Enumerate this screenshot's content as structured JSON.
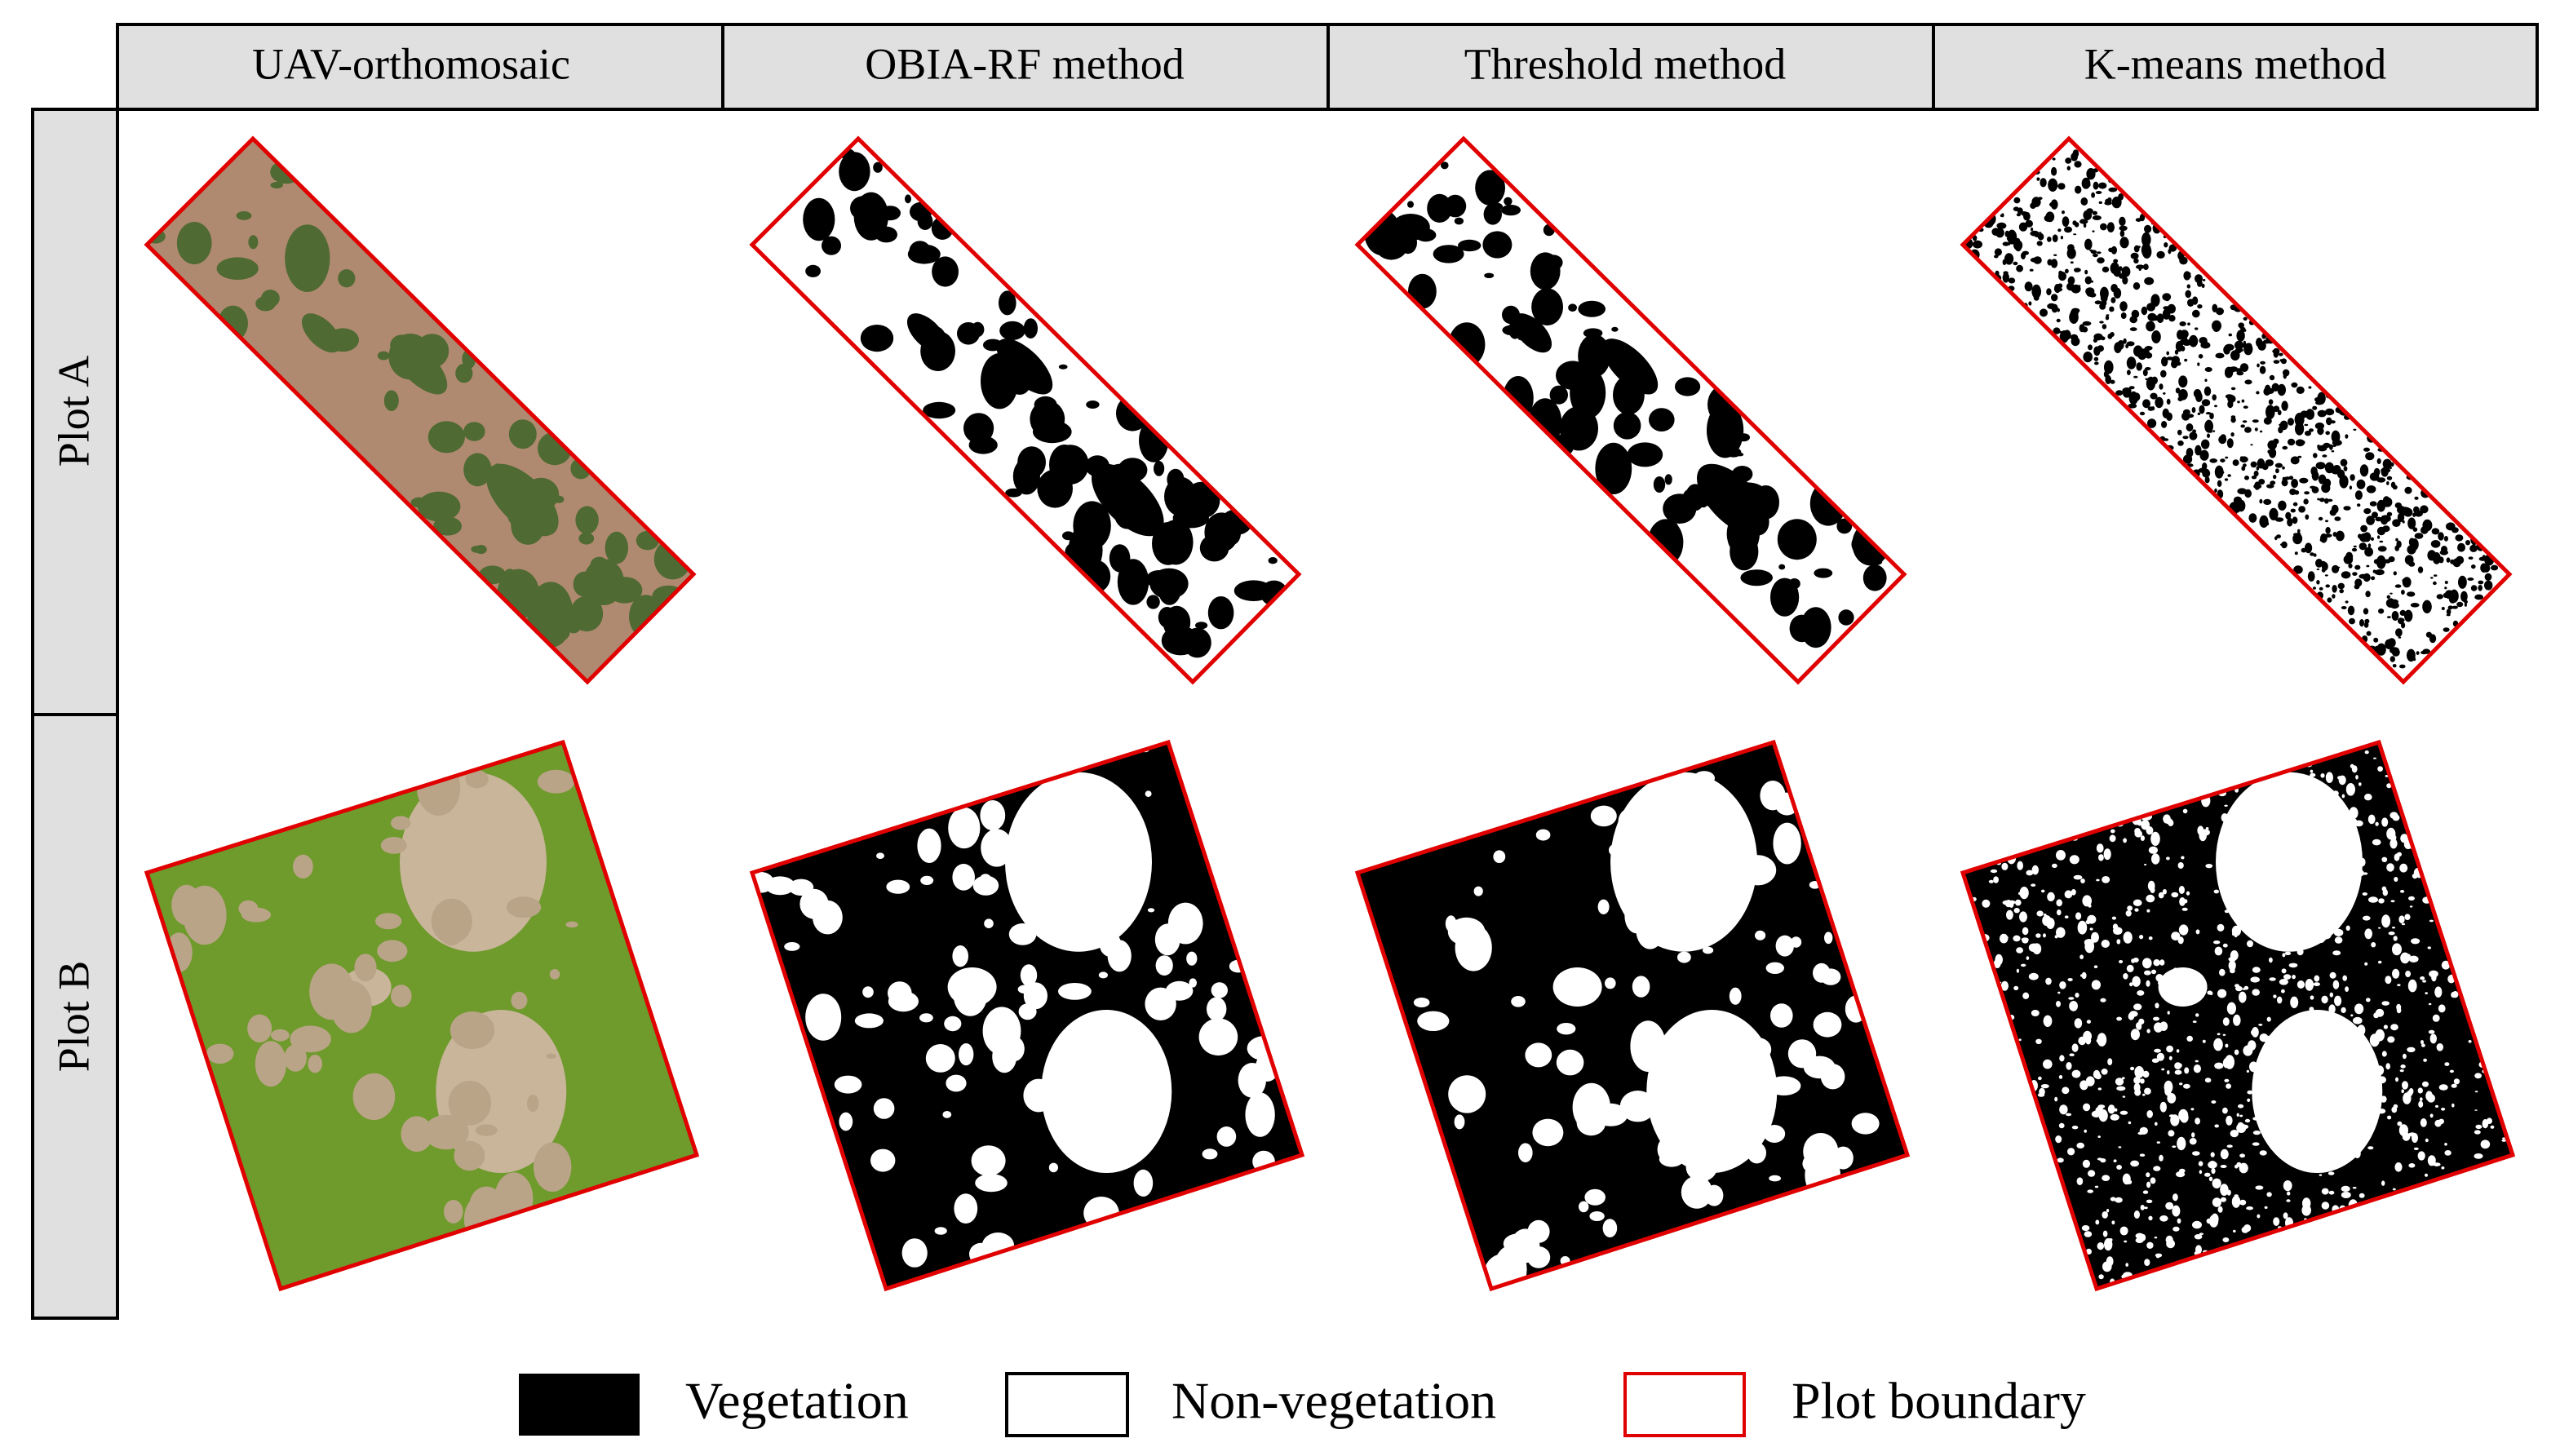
{
  "header": {
    "columns": [
      "UAV-orthomosaic",
      "OBIA-RF method",
      "Threshold method",
      "K-means method"
    ],
    "rows": [
      "Plot A",
      "Plot B"
    ]
  },
  "legend": [
    "Vegetation",
    "Non-vegetation",
    "Plot boundary"
  ]
}
